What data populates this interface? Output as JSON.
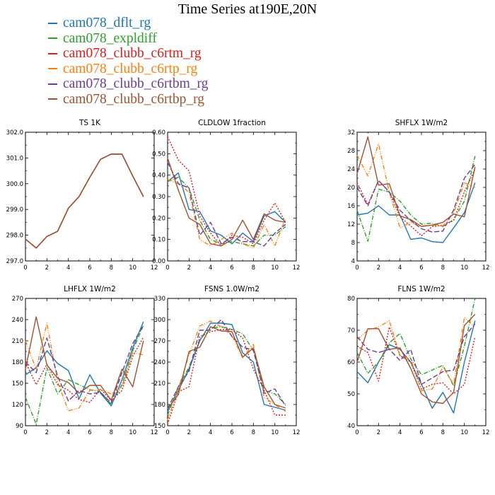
{
  "title": "Time Series at190E,20N",
  "legend": [
    {
      "name": "cam078_dflt_rg",
      "color": "#1f77b4",
      "dash": ""
    },
    {
      "name": "cam078_expldiff",
      "color": "#2ca02c",
      "dash": "6,2,1,2"
    },
    {
      "name": "cam078_clubb_c6rtm_rg",
      "color": "#e31a1c",
      "dash": "2,2"
    },
    {
      "name": "cam078_clubb_c6rtp_rg",
      "color": "#ff7f0e",
      "dash": "6,2,1,2,1,2"
    },
    {
      "name": "cam078_clubb_c6rtbm_rg",
      "color": "#6a3d9a",
      "dash": "7,3"
    },
    {
      "name": "cam078_clubb_c6rtbp_rg",
      "color": "#a0522d",
      "dash": ""
    }
  ],
  "chart_data": [
    {
      "type": "line",
      "title": "TS   1K",
      "x": [
        0,
        1,
        2,
        3,
        4,
        5,
        6,
        7,
        8,
        9,
        10,
        11
      ],
      "xlim": [
        0,
        12
      ],
      "xticks": [
        "0",
        "2",
        "4",
        "6",
        "8",
        "10",
        "12"
      ],
      "ylim": [
        297.0,
        302.0
      ],
      "yticks": [
        "297.0",
        "298.0",
        "299.0",
        "300.0",
        "301.0",
        "302.0"
      ],
      "series": [
        {
          "values": [
            297.85,
            297.5,
            297.95,
            298.15,
            299.05,
            299.5,
            300.25,
            300.95,
            301.15,
            301.15,
            300.3,
            299.5
          ]
        },
        {
          "values": [
            297.85,
            297.5,
            297.95,
            298.15,
            299.05,
            299.5,
            300.25,
            300.95,
            301.15,
            301.15,
            300.3,
            299.5
          ]
        },
        {
          "values": [
            297.85,
            297.5,
            297.95,
            298.15,
            299.05,
            299.5,
            300.25,
            300.95,
            301.15,
            301.15,
            300.3,
            299.5
          ]
        },
        {
          "values": [
            297.85,
            297.5,
            297.95,
            298.15,
            299.05,
            299.5,
            300.25,
            300.95,
            301.15,
            301.15,
            300.3,
            299.5
          ]
        },
        {
          "values": [
            297.85,
            297.5,
            297.95,
            298.15,
            299.05,
            299.5,
            300.25,
            300.95,
            301.15,
            301.15,
            300.3,
            299.5
          ]
        },
        {
          "values": [
            297.85,
            297.5,
            297.95,
            298.15,
            299.05,
            299.5,
            300.25,
            300.95,
            301.15,
            301.15,
            300.3,
            299.5
          ]
        }
      ]
    },
    {
      "type": "line",
      "title": "CLDLOW   1fraction",
      "x": [
        0,
        1,
        2,
        3,
        4,
        5,
        6,
        7,
        8,
        9,
        10,
        11
      ],
      "xlim": [
        0,
        12
      ],
      "xticks": [
        "0",
        "2",
        "4",
        "6",
        "8",
        "10",
        "12"
      ],
      "ylim": [
        0.0,
        0.6
      ],
      "yticks": [
        "0.00",
        "0.10",
        "0.20",
        "0.30",
        "0.40",
        "0.50",
        "0.60"
      ],
      "series": [
        {
          "values": [
            0.37,
            0.41,
            0.24,
            0.23,
            0.14,
            0.12,
            0.08,
            0.13,
            0.09,
            0.21,
            0.23,
            0.18
          ]
        },
        {
          "values": [
            0.37,
            0.39,
            0.34,
            0.19,
            0.1,
            0.08,
            0.09,
            0.08,
            0.07,
            0.12,
            0.12,
            0.16
          ]
        },
        {
          "values": [
            0.58,
            0.47,
            0.42,
            0.21,
            0.13,
            0.07,
            0.12,
            0.11,
            0.08,
            0.19,
            0.27,
            0.18
          ]
        },
        {
          "values": [
            0.38,
            0.36,
            0.32,
            0.1,
            0.07,
            0.1,
            0.13,
            0.08,
            0.06,
            0.17,
            0.07,
            0.2
          ]
        },
        {
          "values": [
            0.46,
            0.36,
            0.34,
            0.12,
            0.18,
            0.08,
            0.11,
            0.09,
            0.09,
            0.07,
            0.13,
            0.17
          ]
        },
        {
          "values": [
            0.48,
            0.33,
            0.2,
            0.17,
            0.08,
            0.07,
            0.1,
            0.19,
            0.1,
            0.22,
            0.19,
            0.18
          ]
        }
      ]
    },
    {
      "type": "line",
      "title": "SHFLX   1W/m2",
      "x": [
        0,
        1,
        2,
        3,
        4,
        5,
        6,
        7,
        8,
        9,
        10,
        11
      ],
      "xlim": [
        0,
        12
      ],
      "xticks": [
        "0",
        "2",
        "4",
        "6",
        "8",
        "10",
        "12"
      ],
      "ylim": [
        4,
        32
      ],
      "yticks": [
        "4",
        "8",
        "12",
        "16",
        "20",
        "24",
        "28",
        "32"
      ],
      "series": [
        {
          "values": [
            14,
            14.4,
            16,
            14,
            14,
            8.7,
            9,
            8.2,
            8,
            11.2,
            14.5,
            21
          ]
        },
        {
          "values": [
            15,
            8.3,
            19.6,
            19,
            17,
            14,
            12,
            12.2,
            11.5,
            13,
            17,
            26.8
          ]
        },
        {
          "values": [
            21,
            16.3,
            21.5,
            19,
            13.6,
            11.6,
            9.5,
            11.5,
            11.7,
            12.8,
            19,
            24
          ]
        },
        {
          "values": [
            27,
            22.5,
            29.5,
            19,
            11.2,
            12.4,
            11.6,
            11.8,
            11.6,
            14.5,
            21,
            20
          ]
        },
        {
          "values": [
            20,
            16,
            21.5,
            19,
            15,
            12.8,
            11,
            10.3,
            10.5,
            15.1,
            22,
            25
          ]
        },
        {
          "values": [
            23,
            31,
            20.5,
            20.8,
            13.8,
            13,
            11.5,
            11.8,
            12.4,
            14.2,
            13.6,
            24.5
          ]
        }
      ]
    },
    {
      "type": "line",
      "title": "LHFLX   1W/m2",
      "x": [
        0,
        1,
        2,
        3,
        4,
        5,
        6,
        7,
        8,
        9,
        10,
        11
      ],
      "xlim": [
        0,
        12
      ],
      "xticks": [
        "0",
        "2",
        "4",
        "6",
        "8",
        "10",
        "12"
      ],
      "ylim": [
        90,
        270
      ],
      "yticks": [
        "90",
        "120",
        "150",
        "180",
        "210",
        "240",
        "270"
      ],
      "series": [
        {
          "values": [
            162,
            172,
            196,
            178,
            168,
            128,
            162,
            136,
            118,
            155,
            200,
            237
          ]
        },
        {
          "values": [
            130,
            92,
            172,
            135,
            155,
            148,
            141,
            138,
            120,
            148,
            196,
            232
          ]
        },
        {
          "values": [
            180,
            148,
            177,
            148,
            140,
            127,
            123,
            142,
            125,
            140,
            188,
            215
          ]
        },
        {
          "values": [
            210,
            170,
            235,
            152,
            111,
            115,
            140,
            141,
            135,
            145,
            194,
            190
          ]
        },
        {
          "values": [
            180,
            165,
            214,
            160,
            125,
            140,
            135,
            137,
            122,
            165,
            206,
            232
          ]
        },
        {
          "values": [
            170,
            244,
            176,
            157,
            151,
            136,
            147,
            147,
            126,
            170,
            145,
            210
          ]
        }
      ]
    },
    {
      "type": "line",
      "title": "FSNS   1.0W/m2",
      "x": [
        0,
        1,
        2,
        3,
        4,
        5,
        6,
        7,
        8,
        9,
        10,
        11
      ],
      "xlim": [
        0,
        12
      ],
      "xticks": [
        "0",
        "2",
        "4",
        "6",
        "8",
        "10",
        "12"
      ],
      "ylim": [
        150,
        330
      ],
      "yticks": [
        "150",
        "180",
        "210",
        "240",
        "270",
        "300",
        "330"
      ],
      "series": [
        {
          "values": [
            170,
            200,
            230,
            270,
            295,
            295,
            293,
            253,
            240,
            180,
            176,
            172
          ]
        },
        {
          "values": [
            165,
            205,
            233,
            272,
            288,
            290,
            286,
            280,
            256,
            200,
            195,
            180
          ]
        },
        {
          "values": [
            152,
            198,
            205,
            276,
            283,
            286,
            286,
            274,
            230,
            200,
            165,
            165
          ]
        },
        {
          "values": [
            158,
            202,
            250,
            291,
            298,
            290,
            278,
            246,
            265,
            190,
            180,
            170
          ]
        },
        {
          "values": [
            174,
            205,
            227,
            285,
            285,
            300,
            276,
            261,
            257,
            196,
            202,
            178
          ]
        },
        {
          "values": [
            174,
            194,
            255,
            261,
            290,
            284,
            283,
            247,
            260,
            205,
            180,
            175
          ]
        }
      ]
    },
    {
      "type": "line",
      "title": "FLNS   1W/m2",
      "x": [
        0,
        1,
        2,
        3,
        4,
        5,
        6,
        7,
        8,
        9,
        10,
        11
      ],
      "xlim": [
        0,
        12
      ],
      "xticks": [
        "0",
        "2",
        "4",
        "6",
        "8",
        "10",
        "12"
      ],
      "ylim": [
        40,
        80
      ],
      "yticks": [
        "40",
        "50",
        "60",
        "70",
        "80"
      ],
      "series": [
        {
          "values": [
            57,
            53.5,
            60,
            65.5,
            64,
            60,
            53,
            45.5,
            50.5,
            44,
            60,
            73
          ]
        },
        {
          "values": [
            63,
            56.5,
            60,
            66,
            69,
            61,
            56,
            57.5,
            59,
            52.5,
            65,
            80
          ]
        },
        {
          "values": [
            65,
            63,
            54,
            71,
            62,
            60,
            51.5,
            53,
            53.5,
            50,
            53,
            68
          ]
        },
        {
          "values": [
            67,
            70,
            71,
            73,
            62,
            61,
            51,
            51.5,
            58.5,
            53,
            74,
            71
          ]
        },
        {
          "values": [
            68,
            64,
            63,
            64,
            60.5,
            64,
            53,
            55,
            57,
            57.5,
            68,
            72
          ]
        },
        {
          "values": [
            60,
            70.5,
            70.5,
            64,
            64.5,
            58,
            50,
            47.5,
            47,
            50.5,
            71.5,
            75
          ]
        }
      ]
    }
  ]
}
